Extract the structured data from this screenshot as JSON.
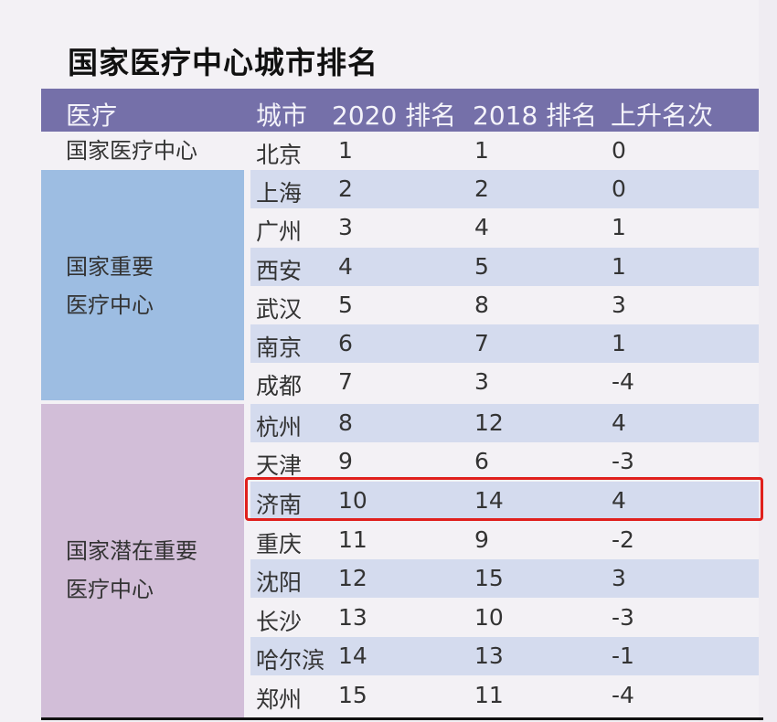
{
  "title": "国家医疗中心城市排名",
  "header": {
    "group": "医疗",
    "city": "城市",
    "rank2020": "2020 排名",
    "rank2018": "2018 排名",
    "change": "上升名次"
  },
  "groups": [
    {
      "line1": "国家医疗中心",
      "line2": "",
      "color": "#f3f1f5"
    },
    {
      "line1": "国家重要",
      "line2": "医疗中心",
      "color": "#9dbde2"
    },
    {
      "line1": "国家潜在重要",
      "line2": "医疗中心",
      "color": "#d2bed8"
    }
  ],
  "rows": [
    {
      "city": "北京",
      "r2020": "1",
      "r2018": "1",
      "change": "0"
    },
    {
      "city": "上海",
      "r2020": "2",
      "r2018": "2",
      "change": "0"
    },
    {
      "city": "广州",
      "r2020": "3",
      "r2018": "4",
      "change": "1"
    },
    {
      "city": "西安",
      "r2020": "4",
      "r2018": "5",
      "change": "1"
    },
    {
      "city": "武汉",
      "r2020": "5",
      "r2018": "8",
      "change": "3"
    },
    {
      "city": "南京",
      "r2020": "6",
      "r2018": "7",
      "change": "1"
    },
    {
      "city": "成都",
      "r2020": "7",
      "r2018": "3",
      "change": "-4"
    },
    {
      "city": "杭州",
      "r2020": "8",
      "r2018": "12",
      "change": "4"
    },
    {
      "city": "天津",
      "r2020": "9",
      "r2018": "6",
      "change": "-3"
    },
    {
      "city": "济南",
      "r2020": "10",
      "r2018": "14",
      "change": "4"
    },
    {
      "city": "重庆",
      "r2020": "11",
      "r2018": "9",
      "change": "-2"
    },
    {
      "city": "沈阳",
      "r2020": "12",
      "r2018": "15",
      "change": "3"
    },
    {
      "city": "长沙",
      "r2020": "13",
      "r2018": "10",
      "change": "-3"
    },
    {
      "city": "哈尔滨",
      "r2020": "14",
      "r2018": "13",
      "change": "-1"
    },
    {
      "city": "郑州",
      "r2020": "15",
      "r2018": "11",
      "change": "-4"
    }
  ],
  "highlight": {
    "city": "济南",
    "color": "#e0201c"
  }
}
